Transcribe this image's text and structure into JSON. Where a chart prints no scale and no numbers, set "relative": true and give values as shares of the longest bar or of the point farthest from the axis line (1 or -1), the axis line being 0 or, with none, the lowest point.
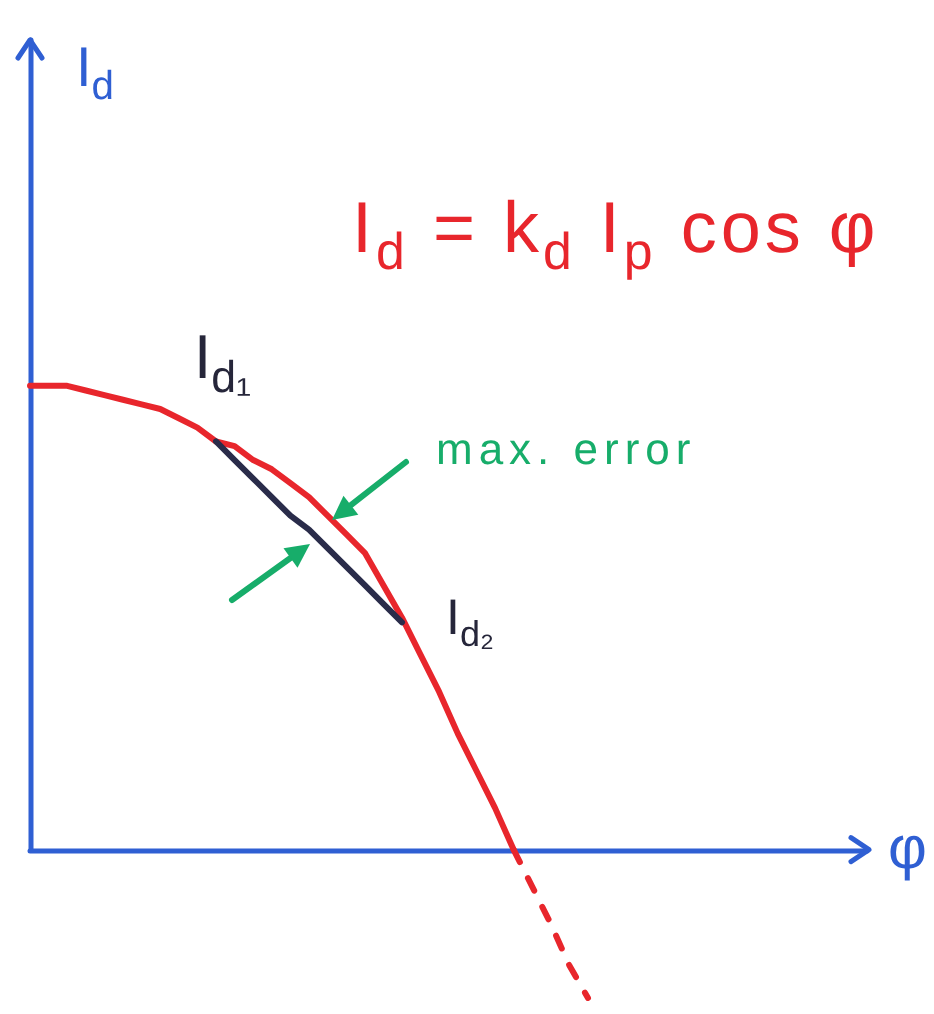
{
  "chart_data": {
    "type": "line",
    "relative": true,
    "xlabel": "φ",
    "ylabel": "I$_{d}$",
    "categories": [
      null,
      null,
      null,
      null,
      null,
      null,
      null,
      null,
      null,
      null,
      null,
      null,
      null,
      null,
      null,
      null,
      null,
      null,
      null,
      null,
      null,
      null,
      null,
      null,
      null,
      null,
      null,
      null,
      null,
      null,
      null,
      null,
      null,
      null,
      null,
      null,
      null,
      null,
      null,
      null,
      null,
      null,
      null,
      null,
      null,
      null
    ],
    "series": [
      {
        "color": "#e8262c",
        "line_style": "solid",
        "values": [
          1.0,
          1.0,
          1.0,
          0.99,
          0.98,
          0.97,
          0.96,
          0.95,
          0.93,
          0.91,
          0.88,
          0.87,
          0.84,
          0.82,
          0.79,
          0.76,
          0.72,
          0.68,
          0.64,
          0.57,
          0.5,
          0.42,
          0.34,
          0.25,
          0.17,
          0.09,
          0.0,
          null,
          null,
          null,
          null,
          null,
          null,
          null,
          null,
          null,
          null,
          null,
          null,
          null,
          null,
          null,
          null,
          null,
          null,
          null
        ]
      },
      {
        "color": "#e8262c",
        "line_style": "dashed",
        "values": [
          null,
          null,
          null,
          null,
          null,
          null,
          null,
          null,
          null,
          null,
          null,
          null,
          null,
          null,
          null,
          null,
          null,
          null,
          null,
          null,
          null,
          null,
          null,
          null,
          null,
          null,
          0.0,
          -0.08,
          -0.16,
          -0.25,
          -0.32,
          null,
          null,
          null,
          null,
          null,
          null,
          null,
          null,
          null,
          null,
          null,
          null,
          null,
          null,
          null
        ]
      },
      {
        "color": "#2a2c4a",
        "line_style": "solid",
        "values": [
          null,
          null,
          null,
          null,
          null,
          null,
          null,
          null,
          null,
          null,
          0.88,
          0.84,
          0.8,
          0.76,
          0.72,
          0.69,
          0.65,
          0.61,
          0.57,
          0.53,
          0.49,
          null,
          null,
          null,
          null,
          null,
          null,
          null,
          null,
          null,
          null,
          null,
          null,
          null,
          null,
          null,
          null,
          null,
          null,
          null,
          null,
          null,
          null,
          null,
          null,
          null
        ]
      }
    ],
    "ref_lines": [
      {
        "axis": "y",
        "value": 0,
        "color": "#2f5fd3"
      }
    ],
    "annotations": [
      "I$_{d}$ = k$_{d}$ I$_{p}$ cos φ",
      {
        "text": "I$_{d₁}$",
        "y": 0.88
      },
      "I$_{d₂}$",
      "max. error"
    ],
    "marker": "none"
  }
}
